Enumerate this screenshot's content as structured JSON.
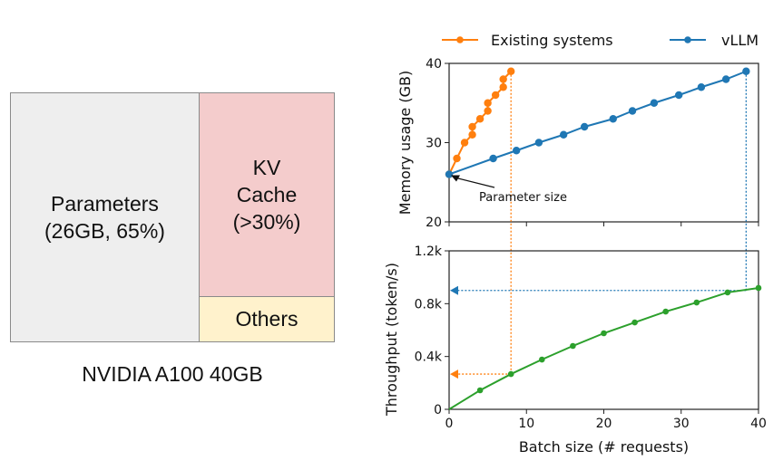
{
  "diagram": {
    "parameters": {
      "line1": "Parameters",
      "line2": "(26GB, 65%)",
      "color": "#eeeeee"
    },
    "kv_cache": {
      "line1": "KV",
      "line2": "Cache",
      "line3": "(>30%)",
      "color": "#f4cccc"
    },
    "others": {
      "label": "Others",
      "color": "#fff2cc"
    },
    "caption": "NVIDIA A100 40GB"
  },
  "chart_data": [
    {
      "type": "line",
      "title": "",
      "xlabel": "",
      "ylabel": "Memory usage (GB)",
      "xlim": [
        0,
        40
      ],
      "ylim": [
        20,
        40
      ],
      "yticks": [
        "20",
        "30",
        "40"
      ],
      "xticks": [
        0,
        10,
        20,
        30,
        40
      ],
      "legend": {
        "placement": "top",
        "entries": [
          "Existing systems",
          "vLLM"
        ]
      },
      "series": [
        {
          "name": "Existing systems",
          "color": "#ff7f0e",
          "x": [
            0,
            1,
            2,
            3,
            3,
            4,
            5,
            5,
            6,
            7,
            7,
            8
          ],
          "y": [
            26,
            28,
            30,
            31,
            32,
            33,
            34,
            35,
            36,
            37,
            38,
            39
          ]
        },
        {
          "name": "vLLM",
          "color": "#1f77b4",
          "x": [
            0,
            5.7,
            8.7,
            11.6,
            14.8,
            17.5,
            21.2,
            23.7,
            26.5,
            29.7,
            32.6,
            35.8,
            38.4
          ],
          "y": [
            26,
            28,
            29,
            30,
            31,
            32,
            33,
            34,
            35,
            36,
            37,
            38,
            39
          ]
        }
      ],
      "annotations": [
        {
          "text": "Parameter size",
          "points_to": {
            "x": 0,
            "y": 26
          }
        }
      ]
    },
    {
      "type": "line",
      "title": "",
      "xlabel": "Batch size (# requests)",
      "ylabel": "Throughput (token/s)",
      "xlim": [
        0,
        40
      ],
      "ylim": [
        0,
        1200
      ],
      "xticks": [
        "0",
        "10",
        "20",
        "30",
        "40"
      ],
      "yticks": [
        "0",
        "0.4k",
        "0.8k",
        "1.2k"
      ],
      "series": [
        {
          "name": "Throughput",
          "color": "#2ca02c",
          "x": [
            0,
            4,
            8,
            12,
            16,
            20,
            24,
            28,
            32,
            36,
            40
          ],
          "y": [
            0,
            144,
            267,
            377,
            480,
            576,
            658,
            740,
            809,
            885,
            919
          ]
        }
      ],
      "reference_lines": [
        {
          "series": "Existing systems",
          "color": "#ff7f0e",
          "batch_size": 8,
          "throughput": 267
        },
        {
          "series": "vLLM",
          "color": "#1f77b4",
          "batch_size": 38.4,
          "throughput": 900
        }
      ]
    }
  ]
}
